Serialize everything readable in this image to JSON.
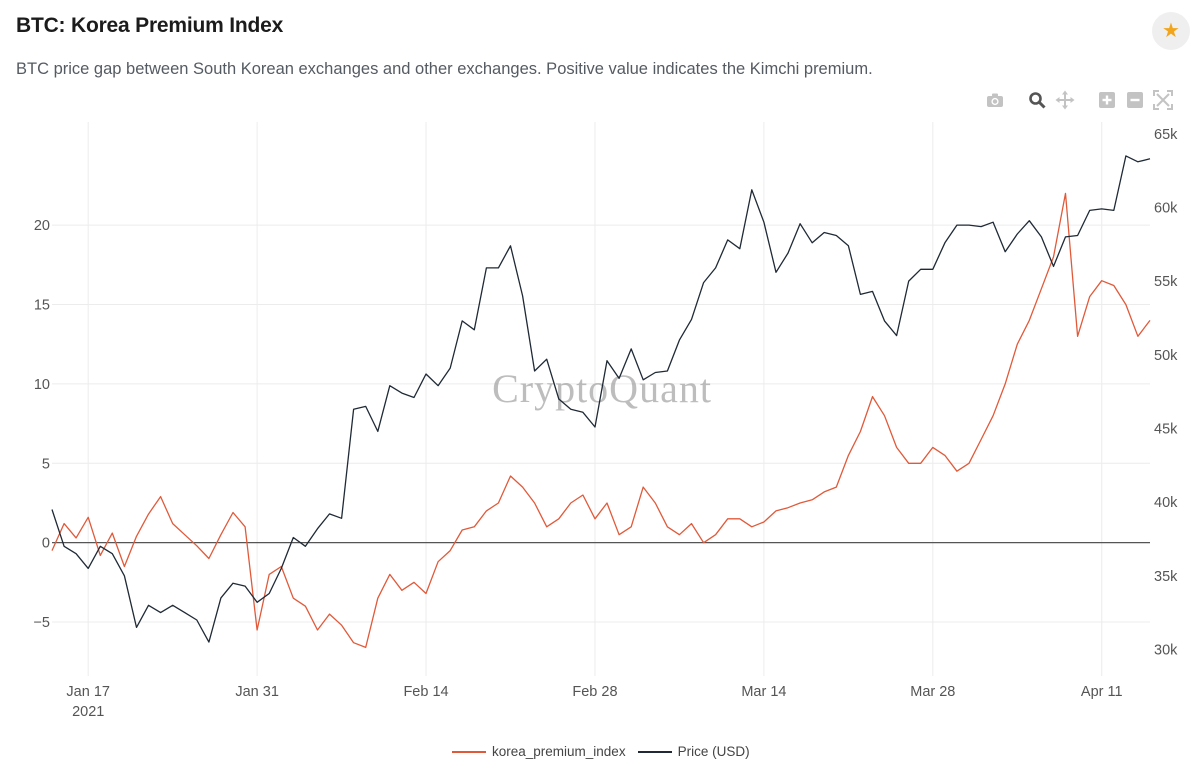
{
  "header": {
    "title": "BTC: Korea Premium Index",
    "subtitle": "BTC price gap between South Korean exchanges and other exchanges. Positive value indicates the Kimchi premium."
  },
  "favorite": {
    "icon": "star-icon",
    "color": "#f2a51a"
  },
  "modebar": {
    "icons": [
      "camera-icon",
      "zoom-icon",
      "pan-icon",
      "zoom-in-icon",
      "zoom-out-icon",
      "autoscale-icon"
    ]
  },
  "watermark": "CryptoQuant",
  "chart_data": {
    "type": "line",
    "x_range": [
      "2021-01-14",
      "2021-04-15"
    ],
    "x_ticks": [
      {
        "date": "2021-01-17",
        "label": "Jan 17",
        "sublabel": "2021"
      },
      {
        "date": "2021-01-31",
        "label": "Jan 31"
      },
      {
        "date": "2021-02-14",
        "label": "Feb 14"
      },
      {
        "date": "2021-02-28",
        "label": "Feb 28"
      },
      {
        "date": "2021-03-14",
        "label": "Mar 14"
      },
      {
        "date": "2021-03-28",
        "label": "Mar 28"
      },
      {
        "date": "2021-04-11",
        "label": "Apr 11"
      }
    ],
    "y_left": {
      "range": [
        -8.4,
        26.5
      ],
      "ticks": [
        -5,
        0,
        5,
        10,
        15,
        20
      ],
      "tick_labels": [
        "−5",
        "0",
        "5",
        "10",
        "15",
        "20"
      ]
    },
    "y_right": {
      "range": [
        28200,
        65800
      ],
      "ticks": [
        30000,
        35000,
        40000,
        45000,
        50000,
        55000,
        60000,
        65000
      ],
      "tick_labels": [
        "30k",
        "35k",
        "40k",
        "45k",
        "50k",
        "55k",
        "60k",
        "65k"
      ]
    },
    "grid": true,
    "legend_position": "bottom-center",
    "series": [
      {
        "name": "korea_premium_index",
        "axis": "left",
        "color": "#e05a3a",
        "points": [
          [
            "2021-01-14",
            -0.5
          ],
          [
            "2021-01-15",
            1.2
          ],
          [
            "2021-01-16",
            0.3
          ],
          [
            "2021-01-17",
            1.6
          ],
          [
            "2021-01-18",
            -0.8
          ],
          [
            "2021-01-19",
            0.6
          ],
          [
            "2021-01-20",
            -1.5
          ],
          [
            "2021-01-21",
            0.4
          ],
          [
            "2021-01-22",
            1.8
          ],
          [
            "2021-01-23",
            2.9
          ],
          [
            "2021-01-24",
            1.2
          ],
          [
            "2021-01-25",
            0.5
          ],
          [
            "2021-01-26",
            -0.2
          ],
          [
            "2021-01-27",
            -1.0
          ],
          [
            "2021-01-28",
            0.5
          ],
          [
            "2021-01-29",
            1.9
          ],
          [
            "2021-01-30",
            1.0
          ],
          [
            "2021-01-31",
            -5.5
          ],
          [
            "2021-02-01",
            -2.0
          ],
          [
            "2021-02-02",
            -1.5
          ],
          [
            "2021-02-03",
            -3.5
          ],
          [
            "2021-02-04",
            -4.0
          ],
          [
            "2021-02-05",
            -5.5
          ],
          [
            "2021-02-06",
            -4.5
          ],
          [
            "2021-02-07",
            -5.2
          ],
          [
            "2021-02-08",
            -6.3
          ],
          [
            "2021-02-09",
            -6.6
          ],
          [
            "2021-02-10",
            -3.5
          ],
          [
            "2021-02-11",
            -2.0
          ],
          [
            "2021-02-12",
            -3.0
          ],
          [
            "2021-02-13",
            -2.5
          ],
          [
            "2021-02-14",
            -3.2
          ],
          [
            "2021-02-15",
            -1.2
          ],
          [
            "2021-02-16",
            -0.5
          ],
          [
            "2021-02-17",
            0.8
          ],
          [
            "2021-02-18",
            1.0
          ],
          [
            "2021-02-19",
            2.0
          ],
          [
            "2021-02-20",
            2.5
          ],
          [
            "2021-02-21",
            4.2
          ],
          [
            "2021-02-22",
            3.5
          ],
          [
            "2021-02-23",
            2.5
          ],
          [
            "2021-02-24",
            1.0
          ],
          [
            "2021-02-25",
            1.5
          ],
          [
            "2021-02-26",
            2.5
          ],
          [
            "2021-02-27",
            3.0
          ],
          [
            "2021-02-28",
            1.5
          ],
          [
            "2021-03-01",
            2.5
          ],
          [
            "2021-03-02",
            0.5
          ],
          [
            "2021-03-03",
            1.0
          ],
          [
            "2021-03-04",
            3.5
          ],
          [
            "2021-03-05",
            2.5
          ],
          [
            "2021-03-06",
            1.0
          ],
          [
            "2021-03-07",
            0.5
          ],
          [
            "2021-03-08",
            1.2
          ],
          [
            "2021-03-09",
            0.0
          ],
          [
            "2021-03-10",
            0.5
          ],
          [
            "2021-03-11",
            1.5
          ],
          [
            "2021-03-12",
            1.5
          ],
          [
            "2021-03-13",
            1.0
          ],
          [
            "2021-03-14",
            1.3
          ],
          [
            "2021-03-15",
            2.0
          ],
          [
            "2021-03-16",
            2.2
          ],
          [
            "2021-03-17",
            2.5
          ],
          [
            "2021-03-18",
            2.7
          ],
          [
            "2021-03-19",
            3.2
          ],
          [
            "2021-03-20",
            3.5
          ],
          [
            "2021-03-21",
            5.5
          ],
          [
            "2021-03-22",
            7.0
          ],
          [
            "2021-03-23",
            9.2
          ],
          [
            "2021-03-24",
            8.0
          ],
          [
            "2021-03-25",
            6.0
          ],
          [
            "2021-03-26",
            5.0
          ],
          [
            "2021-03-27",
            5.0
          ],
          [
            "2021-03-28",
            6.0
          ],
          [
            "2021-03-29",
            5.5
          ],
          [
            "2021-03-30",
            4.5
          ],
          [
            "2021-03-31",
            5.0
          ],
          [
            "2021-04-01",
            6.5
          ],
          [
            "2021-04-02",
            8.0
          ],
          [
            "2021-04-03",
            10.0
          ],
          [
            "2021-04-04",
            12.5
          ],
          [
            "2021-04-05",
            14.0
          ],
          [
            "2021-04-06",
            16.0
          ],
          [
            "2021-04-07",
            18.0
          ],
          [
            "2021-04-08",
            22.0
          ],
          [
            "2021-04-09",
            13.0
          ],
          [
            "2021-04-10",
            15.5
          ],
          [
            "2021-04-11",
            16.5
          ],
          [
            "2021-04-12",
            16.2
          ],
          [
            "2021-04-13",
            15.0
          ],
          [
            "2021-04-14",
            13.0
          ],
          [
            "2021-04-15",
            14.0
          ]
        ]
      },
      {
        "name": "Price (USD)",
        "axis": "right",
        "color": "#1f2a36",
        "points": [
          [
            "2021-01-14",
            39500
          ],
          [
            "2021-01-15",
            37000
          ],
          [
            "2021-01-16",
            36500
          ],
          [
            "2021-01-17",
            35500
          ],
          [
            "2021-01-18",
            37000
          ],
          [
            "2021-01-19",
            36500
          ],
          [
            "2021-01-20",
            35000
          ],
          [
            "2021-01-21",
            31500
          ],
          [
            "2021-01-22",
            33000
          ],
          [
            "2021-01-23",
            32500
          ],
          [
            "2021-01-24",
            33000
          ],
          [
            "2021-01-25",
            32500
          ],
          [
            "2021-01-26",
            32000
          ],
          [
            "2021-01-27",
            30500
          ],
          [
            "2021-01-28",
            33500
          ],
          [
            "2021-01-29",
            34500
          ],
          [
            "2021-01-30",
            34300
          ],
          [
            "2021-01-31",
            33200
          ],
          [
            "2021-02-01",
            33800
          ],
          [
            "2021-02-02",
            35500
          ],
          [
            "2021-02-03",
            37600
          ],
          [
            "2021-02-04",
            37000
          ],
          [
            "2021-02-05",
            38200
          ],
          [
            "2021-02-06",
            39200
          ],
          [
            "2021-02-07",
            38900
          ],
          [
            "2021-02-08",
            46300
          ],
          [
            "2021-02-09",
            46500
          ],
          [
            "2021-02-10",
            44800
          ],
          [
            "2021-02-11",
            47900
          ],
          [
            "2021-02-12",
            47400
          ],
          [
            "2021-02-13",
            47100
          ],
          [
            "2021-02-14",
            48700
          ],
          [
            "2021-02-15",
            47900
          ],
          [
            "2021-02-16",
            49100
          ],
          [
            "2021-02-17",
            52300
          ],
          [
            "2021-02-18",
            51700
          ],
          [
            "2021-02-19",
            55900
          ],
          [
            "2021-02-20",
            55900
          ],
          [
            "2021-02-21",
            57400
          ],
          [
            "2021-02-22",
            54000
          ],
          [
            "2021-02-23",
            48900
          ],
          [
            "2021-02-24",
            49700
          ],
          [
            "2021-02-25",
            47000
          ],
          [
            "2021-02-26",
            46300
          ],
          [
            "2021-02-27",
            46100
          ],
          [
            "2021-02-28",
            45100
          ],
          [
            "2021-03-01",
            49600
          ],
          [
            "2021-03-02",
            48400
          ],
          [
            "2021-03-03",
            50400
          ],
          [
            "2021-03-04",
            48300
          ],
          [
            "2021-03-05",
            48800
          ],
          [
            "2021-03-06",
            48900
          ],
          [
            "2021-03-07",
            51000
          ],
          [
            "2021-03-08",
            52400
          ],
          [
            "2021-03-09",
            54900
          ],
          [
            "2021-03-10",
            55900
          ],
          [
            "2021-03-11",
            57800
          ],
          [
            "2021-03-12",
            57200
          ],
          [
            "2021-03-13",
            61200
          ],
          [
            "2021-03-14",
            59000
          ],
          [
            "2021-03-15",
            55600
          ],
          [
            "2021-03-16",
            56900
          ],
          [
            "2021-03-17",
            58900
          ],
          [
            "2021-03-18",
            57600
          ],
          [
            "2021-03-19",
            58300
          ],
          [
            "2021-03-20",
            58100
          ],
          [
            "2021-03-21",
            57400
          ],
          [
            "2021-03-22",
            54100
          ],
          [
            "2021-03-23",
            54300
          ],
          [
            "2021-03-24",
            52300
          ],
          [
            "2021-03-25",
            51300
          ],
          [
            "2021-03-26",
            55000
          ],
          [
            "2021-03-27",
            55800
          ],
          [
            "2021-03-28",
            55800
          ],
          [
            "2021-03-29",
            57600
          ],
          [
            "2021-03-30",
            58800
          ],
          [
            "2021-03-31",
            58800
          ],
          [
            "2021-04-01",
            58700
          ],
          [
            "2021-04-02",
            59000
          ],
          [
            "2021-04-03",
            57000
          ],
          [
            "2021-04-04",
            58200
          ],
          [
            "2021-04-05",
            59100
          ],
          [
            "2021-04-06",
            58000
          ],
          [
            "2021-04-07",
            56000
          ],
          [
            "2021-04-08",
            58000
          ],
          [
            "2021-04-09",
            58100
          ],
          [
            "2021-04-10",
            59800
          ],
          [
            "2021-04-11",
            59900
          ],
          [
            "2021-04-12",
            59800
          ],
          [
            "2021-04-13",
            63500
          ],
          [
            "2021-04-14",
            63100
          ],
          [
            "2021-04-15",
            63300
          ]
        ]
      }
    ]
  }
}
